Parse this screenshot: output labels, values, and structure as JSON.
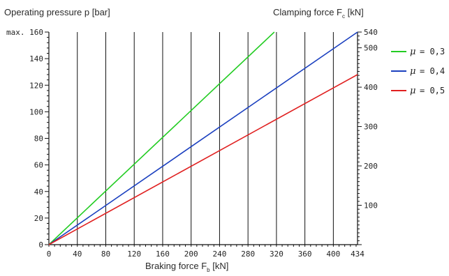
{
  "chart_data": {
    "type": "line",
    "ylabel_left": "Operating pressure p [bar]",
    "ylabel_right": "Clamping force F",
    "ylabel_right_sub": "c",
    "ylabel_right_unit": "[kN]",
    "xlabel": "Braking force F",
    "xlabel_sub": "b",
    "xlabel_unit": "[kN]",
    "xlim": [
      0,
      434
    ],
    "ylim_left": [
      0,
      160
    ],
    "ylim_right": [
      0,
      540
    ],
    "x_ticks": [
      "0",
      "40",
      "80",
      "120",
      "160",
      "200",
      "240",
      "280",
      "320",
      "360",
      "400",
      "434"
    ],
    "x_tick_values": [
      0,
      40,
      80,
      120,
      160,
      200,
      240,
      280,
      320,
      360,
      400,
      434
    ],
    "y_left_ticks": [
      "0",
      "20",
      "40",
      "60",
      "80",
      "100",
      "120",
      "140",
      "max. 160"
    ],
    "y_left_tick_values": [
      0,
      20,
      40,
      60,
      80,
      100,
      120,
      140,
      160
    ],
    "y_right_ticks": [
      "100",
      "200",
      "300",
      "400",
      "500",
      "540"
    ],
    "y_right_tick_values": [
      100,
      200,
      300,
      400,
      500,
      540
    ],
    "series": [
      {
        "name": "= 0,3",
        "color": "#22cc22",
        "x": [
          0,
          317
        ],
        "y": [
          0,
          160
        ]
      },
      {
        "name": "= 0,4",
        "color": "#1a3fbf",
        "x": [
          0,
          434
        ],
        "y": [
          0,
          160
        ]
      },
      {
        "name": "= 0,5",
        "color": "#e02020",
        "x": [
          0,
          434
        ],
        "y": [
          0,
          128
        ]
      }
    ],
    "legend_symbol": "μ",
    "legend_position": "right",
    "grid": "vertical"
  }
}
